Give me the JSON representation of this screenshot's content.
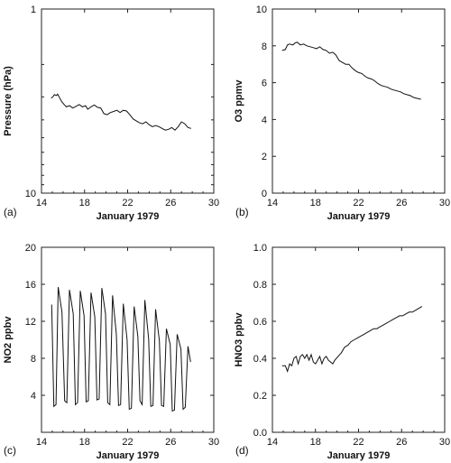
{
  "chart_data": [
    {
      "type": "line",
      "panel_label": "(a)",
      "xlabel": "January 1979",
      "ylabel": "Pressure (hPa)",
      "xlim": [
        14,
        30
      ],
      "ylim": [
        10,
        1
      ],
      "yscale": "log",
      "xticks": [
        14,
        18,
        22,
        26,
        30
      ],
      "yticks": [
        1,
        10
      ],
      "grid": false,
      "series": [
        {
          "x": [
            14.9,
            15.1,
            15.2,
            15.4,
            15.5,
            15.7,
            15.9,
            16.1,
            16.3,
            16.6,
            16.9,
            17.2,
            17.5,
            17.8,
            18.1,
            18.3,
            18.6,
            18.9,
            19.2,
            19.5,
            19.8,
            20.1,
            20.4,
            20.7,
            21.0,
            21.3,
            21.6,
            21.9,
            22.2,
            22.5,
            22.8,
            23.1,
            23.4,
            23.7,
            24.0,
            24.3,
            24.6,
            24.9,
            25.2,
            25.5,
            25.8,
            26.1,
            26.4,
            26.7,
            27.0,
            27.3,
            27.6,
            27.9
          ],
          "y": [
            3.05,
            2.98,
            2.92,
            2.95,
            2.9,
            3.05,
            3.2,
            3.3,
            3.4,
            3.35,
            3.45,
            3.38,
            3.3,
            3.4,
            3.35,
            3.5,
            3.4,
            3.32,
            3.42,
            3.45,
            3.7,
            3.75,
            3.65,
            3.6,
            3.55,
            3.65,
            3.55,
            3.58,
            3.75,
            3.95,
            4.05,
            4.15,
            4.2,
            4.1,
            4.25,
            4.35,
            4.3,
            4.35,
            4.45,
            4.55,
            4.5,
            4.4,
            4.55,
            4.35,
            4.1,
            4.2,
            4.4,
            4.45
          ]
        }
      ]
    },
    {
      "type": "line",
      "panel_label": "(b)",
      "xlabel": "January 1979",
      "ylabel": "O3 ppmv",
      "xlim": [
        14,
        30
      ],
      "ylim": [
        0,
        10
      ],
      "xticks": [
        14,
        18,
        22,
        26,
        30
      ],
      "yticks": [
        0,
        2,
        4,
        6,
        8,
        10
      ],
      "grid": false,
      "series": [
        {
          "x": [
            14.9,
            15.2,
            15.4,
            15.6,
            15.9,
            16.1,
            16.3,
            16.6,
            16.9,
            17.2,
            17.5,
            17.8,
            18.1,
            18.4,
            18.7,
            19.0,
            19.3,
            19.6,
            19.9,
            20.2,
            20.5,
            20.8,
            21.1,
            21.4,
            21.7,
            22.0,
            22.3,
            22.6,
            22.9,
            23.2,
            23.5,
            23.8,
            24.1,
            24.4,
            24.7,
            25.0,
            25.3,
            25.6,
            25.9,
            26.2,
            26.5,
            26.8,
            27.1,
            27.4,
            27.8
          ],
          "y": [
            7.75,
            7.8,
            8.05,
            8.1,
            8.05,
            8.15,
            8.2,
            8.05,
            8.1,
            8.0,
            7.95,
            7.9,
            7.85,
            7.95,
            7.8,
            7.75,
            7.6,
            7.65,
            7.5,
            7.2,
            7.1,
            7.0,
            7.0,
            6.8,
            6.65,
            6.55,
            6.5,
            6.35,
            6.25,
            6.2,
            6.1,
            5.95,
            5.85,
            5.8,
            5.75,
            5.65,
            5.6,
            5.55,
            5.5,
            5.4,
            5.35,
            5.3,
            5.2,
            5.15,
            5.1
          ]
        }
      ]
    },
    {
      "type": "line",
      "panel_label": "(c)",
      "xlabel": "January 1979",
      "ylabel": "NO2 ppbv",
      "xlim": [
        14,
        30
      ],
      "ylim": [
        0,
        20
      ],
      "xticks": [
        14,
        18,
        22,
        26,
        30
      ],
      "yticks": [
        4,
        8,
        12,
        16,
        20
      ],
      "grid": false,
      "series": [
        {
          "x": [
            14.95,
            15.15,
            15.35,
            15.55,
            15.9,
            16.15,
            16.35,
            16.6,
            16.95,
            17.15,
            17.35,
            17.6,
            17.95,
            18.15,
            18.35,
            18.6,
            18.95,
            19.15,
            19.35,
            19.6,
            19.95,
            20.15,
            20.35,
            20.6,
            20.95,
            21.15,
            21.35,
            21.6,
            21.95,
            22.15,
            22.35,
            22.6,
            22.95,
            23.15,
            23.35,
            23.6,
            23.95,
            24.15,
            24.35,
            24.6,
            24.95,
            25.15,
            25.35,
            25.6,
            25.95,
            26.15,
            26.35,
            26.6,
            26.95,
            27.15,
            27.35,
            27.6,
            27.85
          ],
          "y": [
            13.8,
            2.8,
            3.0,
            15.7,
            13.0,
            3.4,
            3.2,
            15.4,
            12.8,
            3.0,
            3.2,
            15.3,
            12.6,
            3.3,
            3.4,
            15.1,
            12.5,
            3.5,
            3.6,
            15.6,
            12.8,
            3.2,
            3.0,
            14.8,
            10.6,
            2.9,
            3.0,
            13.9,
            10.0,
            2.5,
            2.6,
            13.6,
            10.4,
            3.4,
            3.0,
            14.3,
            10.1,
            2.8,
            2.9,
            13.3,
            9.9,
            2.9,
            2.8,
            11.2,
            9.5,
            2.3,
            2.4,
            10.6,
            9.0,
            2.5,
            2.7,
            9.3,
            7.6
          ]
        }
      ]
    },
    {
      "type": "line",
      "panel_label": "(d)",
      "xlabel": "January 1979",
      "ylabel": "HNO3 ppbv",
      "xlim": [
        14,
        30
      ],
      "ylim": [
        0.0,
        1.0
      ],
      "xticks": [
        14,
        18,
        22,
        26,
        30
      ],
      "yticks": [
        0.0,
        0.2,
        0.4,
        0.6,
        0.8,
        1.0
      ],
      "grid": false,
      "series": [
        {
          "x": [
            14.9,
            15.2,
            15.4,
            15.6,
            15.8,
            16.0,
            16.2,
            16.4,
            16.6,
            16.8,
            17.0,
            17.2,
            17.4,
            17.6,
            17.8,
            18.0,
            18.2,
            18.4,
            18.6,
            18.8,
            19.0,
            19.2,
            19.4,
            19.6,
            19.8,
            20.1,
            20.4,
            20.7,
            21.0,
            21.3,
            21.6,
            21.9,
            22.2,
            22.5,
            22.8,
            23.1,
            23.4,
            23.7,
            24.0,
            24.3,
            24.6,
            24.9,
            25.2,
            25.5,
            25.8,
            26.1,
            26.4,
            26.7,
            27.0,
            27.3,
            27.6,
            27.9
          ],
          "y": [
            0.36,
            0.36,
            0.33,
            0.37,
            0.36,
            0.4,
            0.41,
            0.37,
            0.41,
            0.42,
            0.4,
            0.42,
            0.39,
            0.42,
            0.38,
            0.37,
            0.39,
            0.41,
            0.37,
            0.4,
            0.41,
            0.39,
            0.38,
            0.37,
            0.39,
            0.41,
            0.43,
            0.46,
            0.47,
            0.49,
            0.5,
            0.51,
            0.52,
            0.53,
            0.54,
            0.55,
            0.56,
            0.56,
            0.57,
            0.58,
            0.59,
            0.6,
            0.61,
            0.62,
            0.63,
            0.63,
            0.64,
            0.65,
            0.65,
            0.66,
            0.67,
            0.68
          ]
        }
      ]
    }
  ]
}
